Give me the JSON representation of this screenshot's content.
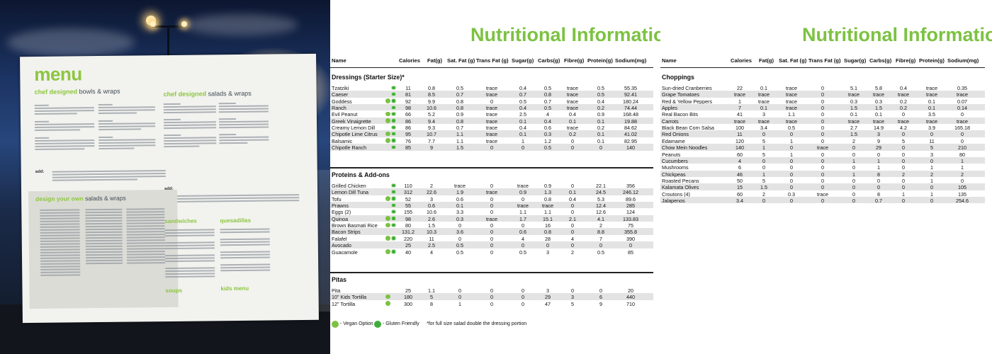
{
  "poster": {
    "title": "menu",
    "bowls_heading_a": "chef designed",
    "bowls_heading_b": "bowls & wraps",
    "salads_heading_a": "chef designed",
    "salads_heading_b": "salads & wraps",
    "dyo_heading_a": "design your own",
    "dyo_heading_b": "salads & wraps",
    "add_label": "add:",
    "add_label_right": "add:",
    "sandwiches": "sandwiches",
    "quesadillas": "quesadillas",
    "soups": "soups",
    "kids_menu": "kids menu"
  },
  "sheets": [
    {
      "title": "Nutritional Information",
      "headers": [
        "Name",
        "Calories",
        "Fat(g)",
        "Sat. Fat (g)",
        "Trans Fat (g)",
        "Sugar(g)",
        "Carbs(g)",
        "Fibre(g)",
        "Protein(g)",
        "Sodium(mg)"
      ],
      "sections": [
        {
          "title": "Dressings (Starter Size)*",
          "rows": [
            {
              "name": "Tzatziki",
              "icons": [
                "gf"
              ],
              "values": [
                "11",
                "0.8",
                "0.5",
                "trace",
                "0.4",
                "0.5",
                "trace",
                "0.5",
                "55.35"
              ]
            },
            {
              "name": "Caeser",
              "icons": [
                "gf"
              ],
              "values": [
                "81",
                "8.5",
                "0.7",
                "trace",
                "0.7",
                "0.8",
                "trace",
                "0.5",
                "92.41"
              ]
            },
            {
              "name": "Goddess",
              "icons": [
                "veg",
                "gf"
              ],
              "values": [
                "92",
                "9.9",
                "0.8",
                "0",
                "0.5",
                "0.7",
                "trace",
                "0.4",
                "180.24"
              ]
            },
            {
              "name": "Ranch",
              "icons": [
                "gf"
              ],
              "values": [
                "98",
                "10.6",
                "0.8",
                "trace",
                "0.4",
                "0.5",
                "trace",
                "0.2",
                "74.44"
              ]
            },
            {
              "name": "Evil Peanut",
              "icons": [
                "veg",
                "gf"
              ],
              "values": [
                "66",
                "5.2",
                "0.9",
                "trace",
                "2.5",
                "4",
                "0.4",
                "0.9",
                "168.48"
              ]
            },
            {
              "name": "Greek Vinaigrette",
              "icons": [
                "veg",
                "gf"
              ],
              "values": [
                "86",
                "9.4",
                "0.8",
                "trace",
                "0.1",
                "0.4",
                "0.1",
                "0.1",
                "19.88"
              ]
            },
            {
              "name": "Creamy Lemon Dill",
              "icons": [
                "gf"
              ],
              "values": [
                "86",
                "9.3",
                "0.7",
                "trace",
                "0.4",
                "0.6",
                "trace",
                "0.2",
                "84.62"
              ]
            },
            {
              "name": "Chipotle Lime Citrus",
              "icons": [
                "veg",
                "gf"
              ],
              "values": [
                "95",
                "10.7",
                "1.1",
                "trace",
                "0.1",
                "0.3",
                "0.2",
                "0.1",
                "41.02"
              ]
            },
            {
              "name": "Balsamic",
              "icons": [
                "veg",
                "gf"
              ],
              "values": [
                "76",
                "7.7",
                "1.1",
                "trace",
                "1",
                "1.2",
                "0",
                "0.1",
                "82.95"
              ]
            },
            {
              "name": "Chipotle Ranch",
              "icons": [
                "gf"
              ],
              "values": [
                "85",
                "9",
                "1.5",
                "0",
                "0",
                "0.5",
                "0",
                "0",
                "140"
              ]
            }
          ]
        },
        {
          "title": "Proteins & Add-ons",
          "rows": [
            {
              "name": "Grilled Chicken",
              "icons": [
                "gf"
              ],
              "values": [
                "110",
                "2",
                "trace",
                "0",
                "trace",
                "0.9",
                "0",
                "22.1",
                "356"
              ]
            },
            {
              "name": "Lemon Dill Tuna",
              "icons": [
                "gf"
              ],
              "values": [
                "312",
                "22.6",
                "1.9",
                "trace",
                "0.9",
                "1.3",
                "0.1",
                "24.5",
                "246.12"
              ]
            },
            {
              "name": "Tofu",
              "icons": [
                "veg",
                "gf"
              ],
              "values": [
                "52",
                "3",
                "0.6",
                "0",
                "0",
                "0.8",
                "0.4",
                "5.3",
                "89.6"
              ]
            },
            {
              "name": "Prawns",
              "icons": [
                "gf"
              ],
              "values": [
                "55",
                "0.6",
                "0.1",
                "0",
                "trace",
                "trace",
                "0",
                "12.4",
                "285"
              ]
            },
            {
              "name": "Eggs (2)",
              "icons": [
                "gf"
              ],
              "values": [
                "155",
                "10.6",
                "3.3",
                "0",
                "1.1",
                "1.1",
                "0",
                "12.6",
                "124"
              ]
            },
            {
              "name": "Quinoa",
              "icons": [
                "veg",
                "gf"
              ],
              "values": [
                "98",
                "2.6",
                "0.3",
                "trace",
                "1.7",
                "15.1",
                "2.1",
                "4.1",
                "133.83"
              ]
            },
            {
              "name": "Brown Basmati Rice",
              "icons": [
                "veg",
                "gf"
              ],
              "values": [
                "80",
                "1.5",
                "0",
                "0",
                "0",
                "16",
                "0",
                "2",
                "75"
              ]
            },
            {
              "name": "Bacon Strips",
              "icons": [],
              "values": [
                "131.2",
                "10.3",
                "3.6",
                "0",
                "0.6",
                "0.8",
                "0",
                "8.8",
                "355.8"
              ]
            },
            {
              "name": "Falafel",
              "icons": [
                "veg",
                "gf"
              ],
              "values": [
                "220",
                "11",
                "0",
                "0",
                "4",
                "28",
                "4",
                "7",
                "390"
              ]
            },
            {
              "name": "Avocado",
              "icons": [],
              "values": [
                "25",
                "2.5",
                "0.5",
                "0",
                "0",
                "0",
                "0",
                "0",
                "0"
              ]
            },
            {
              "name": "Guacamole",
              "icons": [
                "veg",
                "gf"
              ],
              "values": [
                "40",
                "4",
                "0.5",
                "0",
                "0.5",
                "3",
                "2",
                "0.5",
                "85"
              ]
            }
          ]
        },
        {
          "title": "Pitas",
          "rows": [
            {
              "name": "Pita",
              "icons": [],
              "values": [
                "25",
                "1.1",
                "0",
                "0",
                "0",
                "3",
                "0",
                "0",
                "20"
              ]
            },
            {
              "name": "10\" Kids Tortilla",
              "icons": [
                "veg"
              ],
              "values": [
                "180",
                "5",
                "0",
                "0",
                "0",
                "29",
                "3",
                "6",
                "440"
              ]
            },
            {
              "name": "12\" Tortilla",
              "icons": [
                "veg"
              ],
              "values": [
                "300",
                "8",
                "1",
                "0",
                "0",
                "47",
                "5",
                "9",
                "710"
              ]
            }
          ]
        }
      ],
      "legend": {
        "vegan": "- Vegan Option",
        "gf": "- Gluten Friendly",
        "note": "*for full size salad double the dressing portion"
      }
    },
    {
      "title": "Nutritional Information",
      "headers": [
        "Name",
        "Calories",
        "Fat(g)",
        "Sat. Fat (g)",
        "Trans Fat (g)",
        "Sugar(g)",
        "Carbs(g)",
        "Fibre(g)",
        "Protein(g)",
        "Sodium(mg)"
      ],
      "sections": [
        {
          "title": "Choppings",
          "rows": [
            {
              "name": "Sun-dried Cranberries",
              "values": [
                "22",
                "0.1",
                "trace",
                "0",
                "5.1",
                "5.8",
                "0.4",
                "trace",
                "0.35"
              ]
            },
            {
              "name": "Grape Tomatoes",
              "values": [
                "trace",
                "trace",
                "trace",
                "0",
                "trace",
                "trace",
                "trace",
                "trace",
                "trace"
              ]
            },
            {
              "name": "Red & Yellow Peppers",
              "values": [
                "1",
                "trace",
                "trace",
                "0",
                "0.3",
                "0.3",
                "0.2",
                "0.1",
                "0.07"
              ]
            },
            {
              "name": "Apples",
              "values": [
                "7",
                "0.1",
                "trace",
                "0",
                "1.5",
                "1.5",
                "0.2",
                "0.1",
                "0.14"
              ]
            },
            {
              "name": "Real Bacon Bits",
              "values": [
                "41",
                "3",
                "1.1",
                "0",
                "0.1",
                "0.1",
                "0",
                "3.5",
                "0"
              ]
            },
            {
              "name": "Carrots",
              "values": [
                "trace",
                "trace",
                "trace",
                "0",
                "trace",
                "trace",
                "trace",
                "trace",
                "trace"
              ]
            },
            {
              "name": "Black Bean Corn Salsa",
              "values": [
                "100",
                "3.4",
                "0.5",
                "0",
                "2.7",
                "14.9",
                "4.2",
                "3.9",
                "165.18"
              ]
            },
            {
              "name": "Red Onions",
              "values": [
                "11",
                "0",
                "0",
                "0",
                "1.5",
                "3",
                "0",
                "0",
                "0"
              ]
            },
            {
              "name": "Edamame",
              "values": [
                "120",
                "5",
                "1",
                "0",
                "2",
                "9",
                "5",
                "11",
                "0"
              ]
            },
            {
              "name": "Chow Mein Noodles",
              "values": [
                "140",
                "1",
                "0",
                "trace",
                "0",
                "29",
                "0",
                "5",
                "210"
              ]
            },
            {
              "name": "Peanuts",
              "values": [
                "60",
                "5",
                "1",
                "0",
                "0",
                "0",
                "0",
                "3",
                "80"
              ]
            },
            {
              "name": "Cucumbers",
              "values": [
                "4",
                "0",
                "0",
                "0",
                "1",
                "1",
                "0",
                "0",
                "1"
              ]
            },
            {
              "name": "Mushrooms",
              "values": [
                "6",
                "0",
                "0",
                "0",
                "0",
                "1",
                "0",
                "1",
                "1"
              ]
            },
            {
              "name": "Chickpeas",
              "values": [
                "46",
                "1",
                "0",
                "0",
                "1",
                "8",
                "2",
                "2",
                "2"
              ]
            },
            {
              "name": "Roasted Pecans",
              "values": [
                "50",
                "5",
                "0",
                "0",
                "0",
                "0",
                "0",
                "1",
                "0"
              ]
            },
            {
              "name": "Kalamata Olives",
              "values": [
                "15",
                "1.5",
                "0",
                "0",
                "0",
                "0",
                "0",
                "0",
                "105"
              ]
            },
            {
              "name": "Croutons (4)",
              "values": [
                "60",
                "2",
                "0.3",
                "trace",
                "0",
                "8",
                "1",
                "1",
                "135"
              ]
            },
            {
              "name": "Jalapenos",
              "values": [
                "3.4",
                "0",
                "0",
                "0",
                "0",
                "0.7",
                "0",
                "0",
                "254.6"
              ]
            }
          ]
        }
      ]
    }
  ]
}
